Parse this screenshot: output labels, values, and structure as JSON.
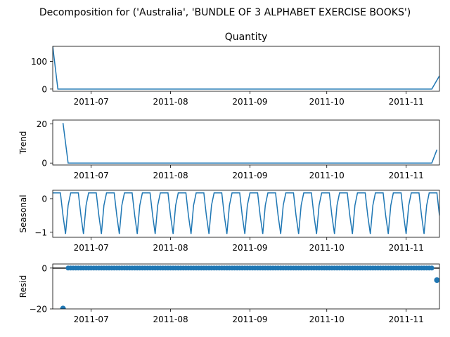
{
  "suptitle": "Decomposition for ('Australia', 'BUNDLE OF 3 ALPHABET EXERCISE BOOKS')",
  "colors": {
    "line": "#1f77b4",
    "axis": "#000000",
    "background": "#ffffff"
  },
  "chart_data": [
    {
      "type": "line",
      "title": "Quantity",
      "ylabel": "",
      "x_start": "2011-06-16",
      "x_end": "2011-11-14",
      "xlim": [
        "2011-06-16",
        "2011-11-14"
      ],
      "ylim": [
        -8,
        155
      ],
      "yticks": [
        0,
        100
      ],
      "xtick_labels": [
        "2011-07",
        "2011-08",
        "2011-09",
        "2011-10",
        "2011-11"
      ],
      "series": [
        {
          "points": [
            [
              "2011-06-16",
              155
            ],
            [
              "2011-06-18",
              0
            ],
            [
              "2011-11-11",
              0
            ],
            [
              "2011-11-14",
              48
            ]
          ]
        }
      ]
    },
    {
      "type": "line",
      "title": "",
      "ylabel": "Trend",
      "xlim": [
        "2011-06-16",
        "2011-11-14"
      ],
      "ylim": [
        -1,
        22
      ],
      "yticks": [
        0,
        20
      ],
      "xtick_labels": [
        "2011-07",
        "2011-08",
        "2011-09",
        "2011-10",
        "2011-11"
      ],
      "series": [
        {
          "points": [
            [
              "2011-06-20",
              20.5
            ],
            [
              "2011-06-22",
              0
            ],
            [
              "2011-11-11",
              0
            ],
            [
              "2011-11-13",
              6.8
            ]
          ]
        }
      ]
    },
    {
      "type": "line",
      "title": "",
      "ylabel": "Seasonal",
      "xlim": [
        "2011-06-16",
        "2011-11-14"
      ],
      "ylim": [
        -1.15,
        0.25
      ],
      "yticks": [
        0,
        -1
      ],
      "xtick_labels": [
        "2011-07",
        "2011-08",
        "2011-09",
        "2011-10",
        "2011-11"
      ],
      "seasonal_period_days": 7,
      "seasonal_pattern": [
        0.17,
        0.17,
        0.17,
        0.17,
        -0.5,
        -1.05,
        -0.2
      ],
      "series": []
    },
    {
      "type": "scatter",
      "title": "",
      "ylabel": "Resid",
      "xlim": [
        "2011-06-16",
        "2011-11-14"
      ],
      "ylim": [
        -20,
        2
      ],
      "yticks": [
        0,
        -20
      ],
      "xtick_labels": [
        "2011-07",
        "2011-08",
        "2011-09",
        "2011-10",
        "2011-11"
      ],
      "zero_line": true,
      "resid_outliers": [
        [
          "2011-06-20",
          -19.8
        ],
        [
          "2011-11-13",
          -5.9
        ]
      ],
      "resid_zero_range": [
        "2011-06-22",
        "2011-11-11"
      ],
      "series": []
    }
  ]
}
